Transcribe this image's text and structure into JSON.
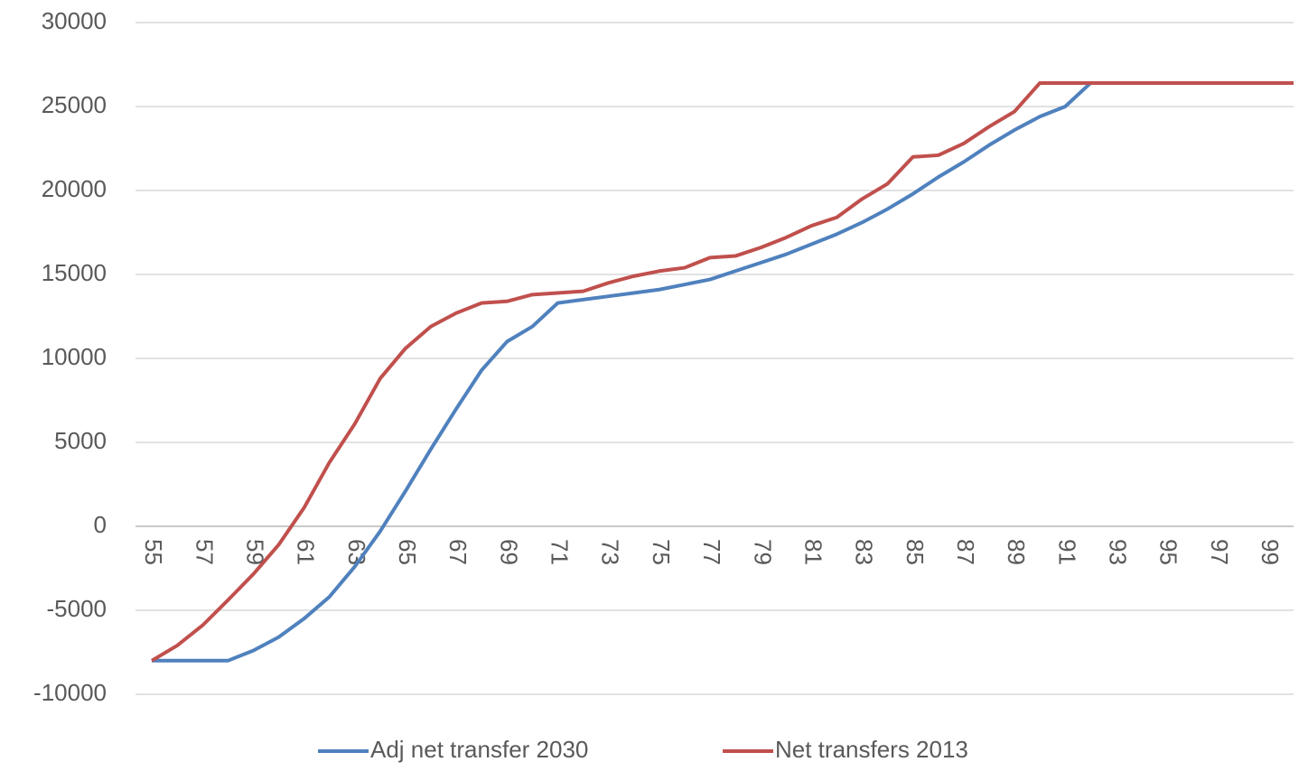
{
  "chart_data": {
    "type": "line",
    "categories": [
      "55",
      null,
      "57",
      null,
      "59",
      null,
      "61",
      null,
      "63",
      null,
      "65",
      null,
      "67",
      null,
      "69",
      null,
      "71",
      null,
      "73",
      null,
      "75",
      null,
      "77",
      null,
      "79",
      null,
      "81",
      null,
      "83",
      null,
      "85",
      null,
      "87",
      null,
      "89",
      null,
      "91",
      null,
      "93",
      null,
      "95",
      null,
      "97",
      null,
      "99",
      null
    ],
    "series": [
      {
        "name": "Adj net transfer 2030",
        "color": "#4f81bd",
        "values": [
          -8000,
          -8000,
          -8000,
          -8000,
          -7400,
          -6600,
          -5500,
          -4200,
          -2400,
          -300,
          2100,
          4600,
          7000,
          9300,
          11000,
          11900,
          13300,
          13500,
          13700,
          13900,
          14100,
          14400,
          14700,
          15200,
          15700,
          16200,
          16800,
          17400,
          18100,
          18900,
          19800,
          20800,
          21700,
          22700,
          23600,
          24400,
          25000,
          26400,
          26400,
          26400,
          26400,
          26400,
          26400,
          26400,
          26400,
          26400
        ]
      },
      {
        "name": "Net transfers 2013",
        "color": "#c0504d",
        "values": [
          -8000,
          -7100,
          -5900,
          -4400,
          -2850,
          -1100,
          1100,
          3800,
          6100,
          8800,
          10600,
          11900,
          12700,
          13300,
          13400,
          13800,
          13900,
          14000,
          14500,
          14900,
          15200,
          15400,
          16000,
          16100,
          16600,
          17200,
          17900,
          18400,
          19500,
          20400,
          22000,
          22100,
          22800,
          23800,
          24700,
          26400,
          26400,
          26400,
          26400,
          26400,
          26400,
          26400,
          26400,
          26400,
          26400,
          26400
        ]
      }
    ],
    "ylim": [
      -10000,
      30000
    ],
    "yticks": [
      -10000,
      -5000,
      0,
      5000,
      10000,
      15000,
      20000,
      25000,
      30000
    ],
    "grid": true,
    "legend": "bottom"
  }
}
